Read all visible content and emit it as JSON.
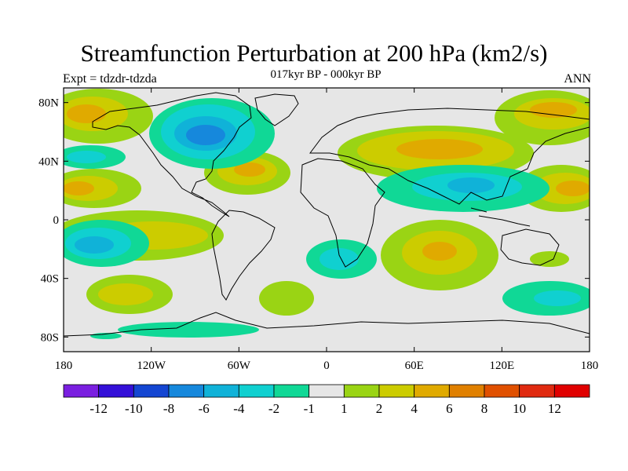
{
  "header": {
    "title": "Streamfunction Perturbation at 200 hPa (km2/s)",
    "subtitle": "017kyr BP - 000kyr BP",
    "left_label": "Expt = tdzdr-tdzda",
    "right_label": "ANN"
  },
  "map": {
    "projection": "cylindrical-equidistant",
    "lon_range": [
      -180,
      180
    ],
    "lat_range": [
      -90,
      90
    ],
    "lat_ticks": [
      {
        "value": 80,
        "label": "80N"
      },
      {
        "value": 40,
        "label": "40N"
      },
      {
        "value": 0,
        "label": "0"
      },
      {
        "value": -40,
        "label": "40S"
      },
      {
        "value": -80,
        "label": "80S"
      }
    ],
    "lon_ticks": [
      {
        "value": -180,
        "label": "180"
      },
      {
        "value": -120,
        "label": "120W"
      },
      {
        "value": -60,
        "label": "60W"
      },
      {
        "value": 0,
        "label": "0"
      },
      {
        "value": 60,
        "label": "60E"
      },
      {
        "value": 120,
        "label": "120E"
      },
      {
        "value": 180,
        "label": "180"
      }
    ],
    "background_color": "#e6e6e6",
    "coastline_color": "#000000"
  },
  "colorbar": {
    "colors": [
      "#7a1fe0",
      "#3410d8",
      "#1446d2",
      "#1688dc",
      "#10b2d8",
      "#10d0d0",
      "#10d896",
      "#e6e6e6",
      "#9ad414",
      "#cccc00",
      "#e0aa00",
      "#e08000",
      "#e05000",
      "#e02a10",
      "#e00000"
    ],
    "labels": [
      "-12",
      "-10",
      "-8",
      "-6",
      "-4",
      "-2",
      "-1",
      "1",
      "2",
      "4",
      "6",
      "8",
      "10",
      "12"
    ]
  }
}
